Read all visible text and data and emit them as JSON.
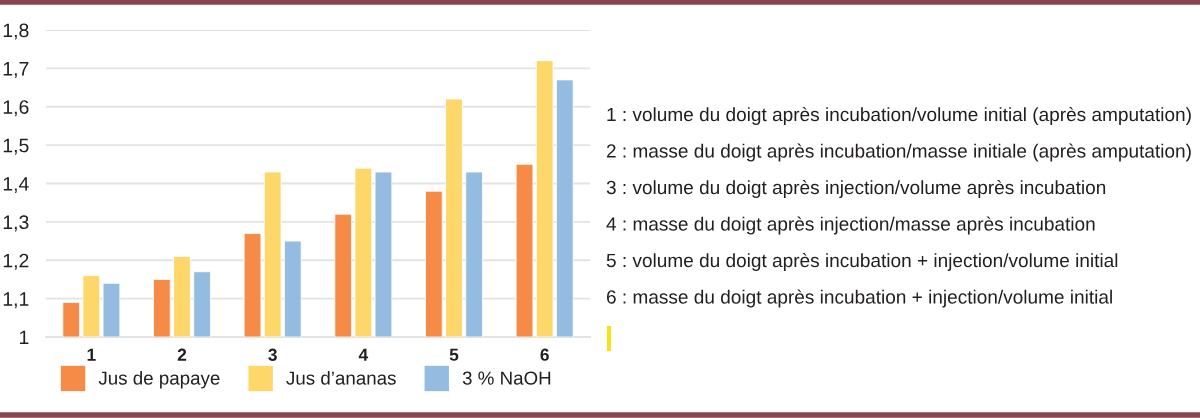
{
  "chart_data": {
    "type": "bar",
    "categories": [
      "1",
      "2",
      "3",
      "4",
      "5",
      "6"
    ],
    "series": [
      {
        "name": "Jus de papaye",
        "color": "#f68b47",
        "values": [
          1.09,
          1.15,
          1.27,
          1.32,
          1.38,
          1.45
        ]
      },
      {
        "name": "Jus d’ananas",
        "color": "#fdd76a",
        "values": [
          1.16,
          1.21,
          1.43,
          1.44,
          1.62,
          1.72
        ]
      },
      {
        "name": "3 % NaOH",
        "color": "#93bce0",
        "values": [
          1.14,
          1.17,
          1.25,
          1.43,
          1.43,
          1.67
        ]
      }
    ],
    "ylim": [
      1,
      1.8
    ],
    "yticks": [
      1,
      {
        "value": 1.1,
        "label": "1,1"
      },
      {
        "value": 1.2,
        "label": "1,2"
      },
      {
        "value": 1.3,
        "label": "1,3"
      },
      {
        "value": 1.4,
        "label": "1,4"
      },
      {
        "value": 1.5,
        "label": "1,5"
      },
      {
        "value": 1.6,
        "label": "1,6"
      },
      {
        "value": 1.7,
        "label": "1,7"
      },
      {
        "value": 1.8,
        "label": "1,8"
      }
    ],
    "grid": "y",
    "legend": "bottom",
    "annotations": [
      "1 : volume du doigt après incubation/volume initial (après amputation)",
      "2 : masse du doigt après incubation/masse initiale (après amputation)",
      "3 : volume du doigt après injection/volume après incubation",
      "4 : masse du doigt après injection/masse après incubation",
      "5 : volume du doigt après incubation + injection/volume initial",
      "6 : masse du doigt après incubation + injection/volume initial"
    ]
  }
}
